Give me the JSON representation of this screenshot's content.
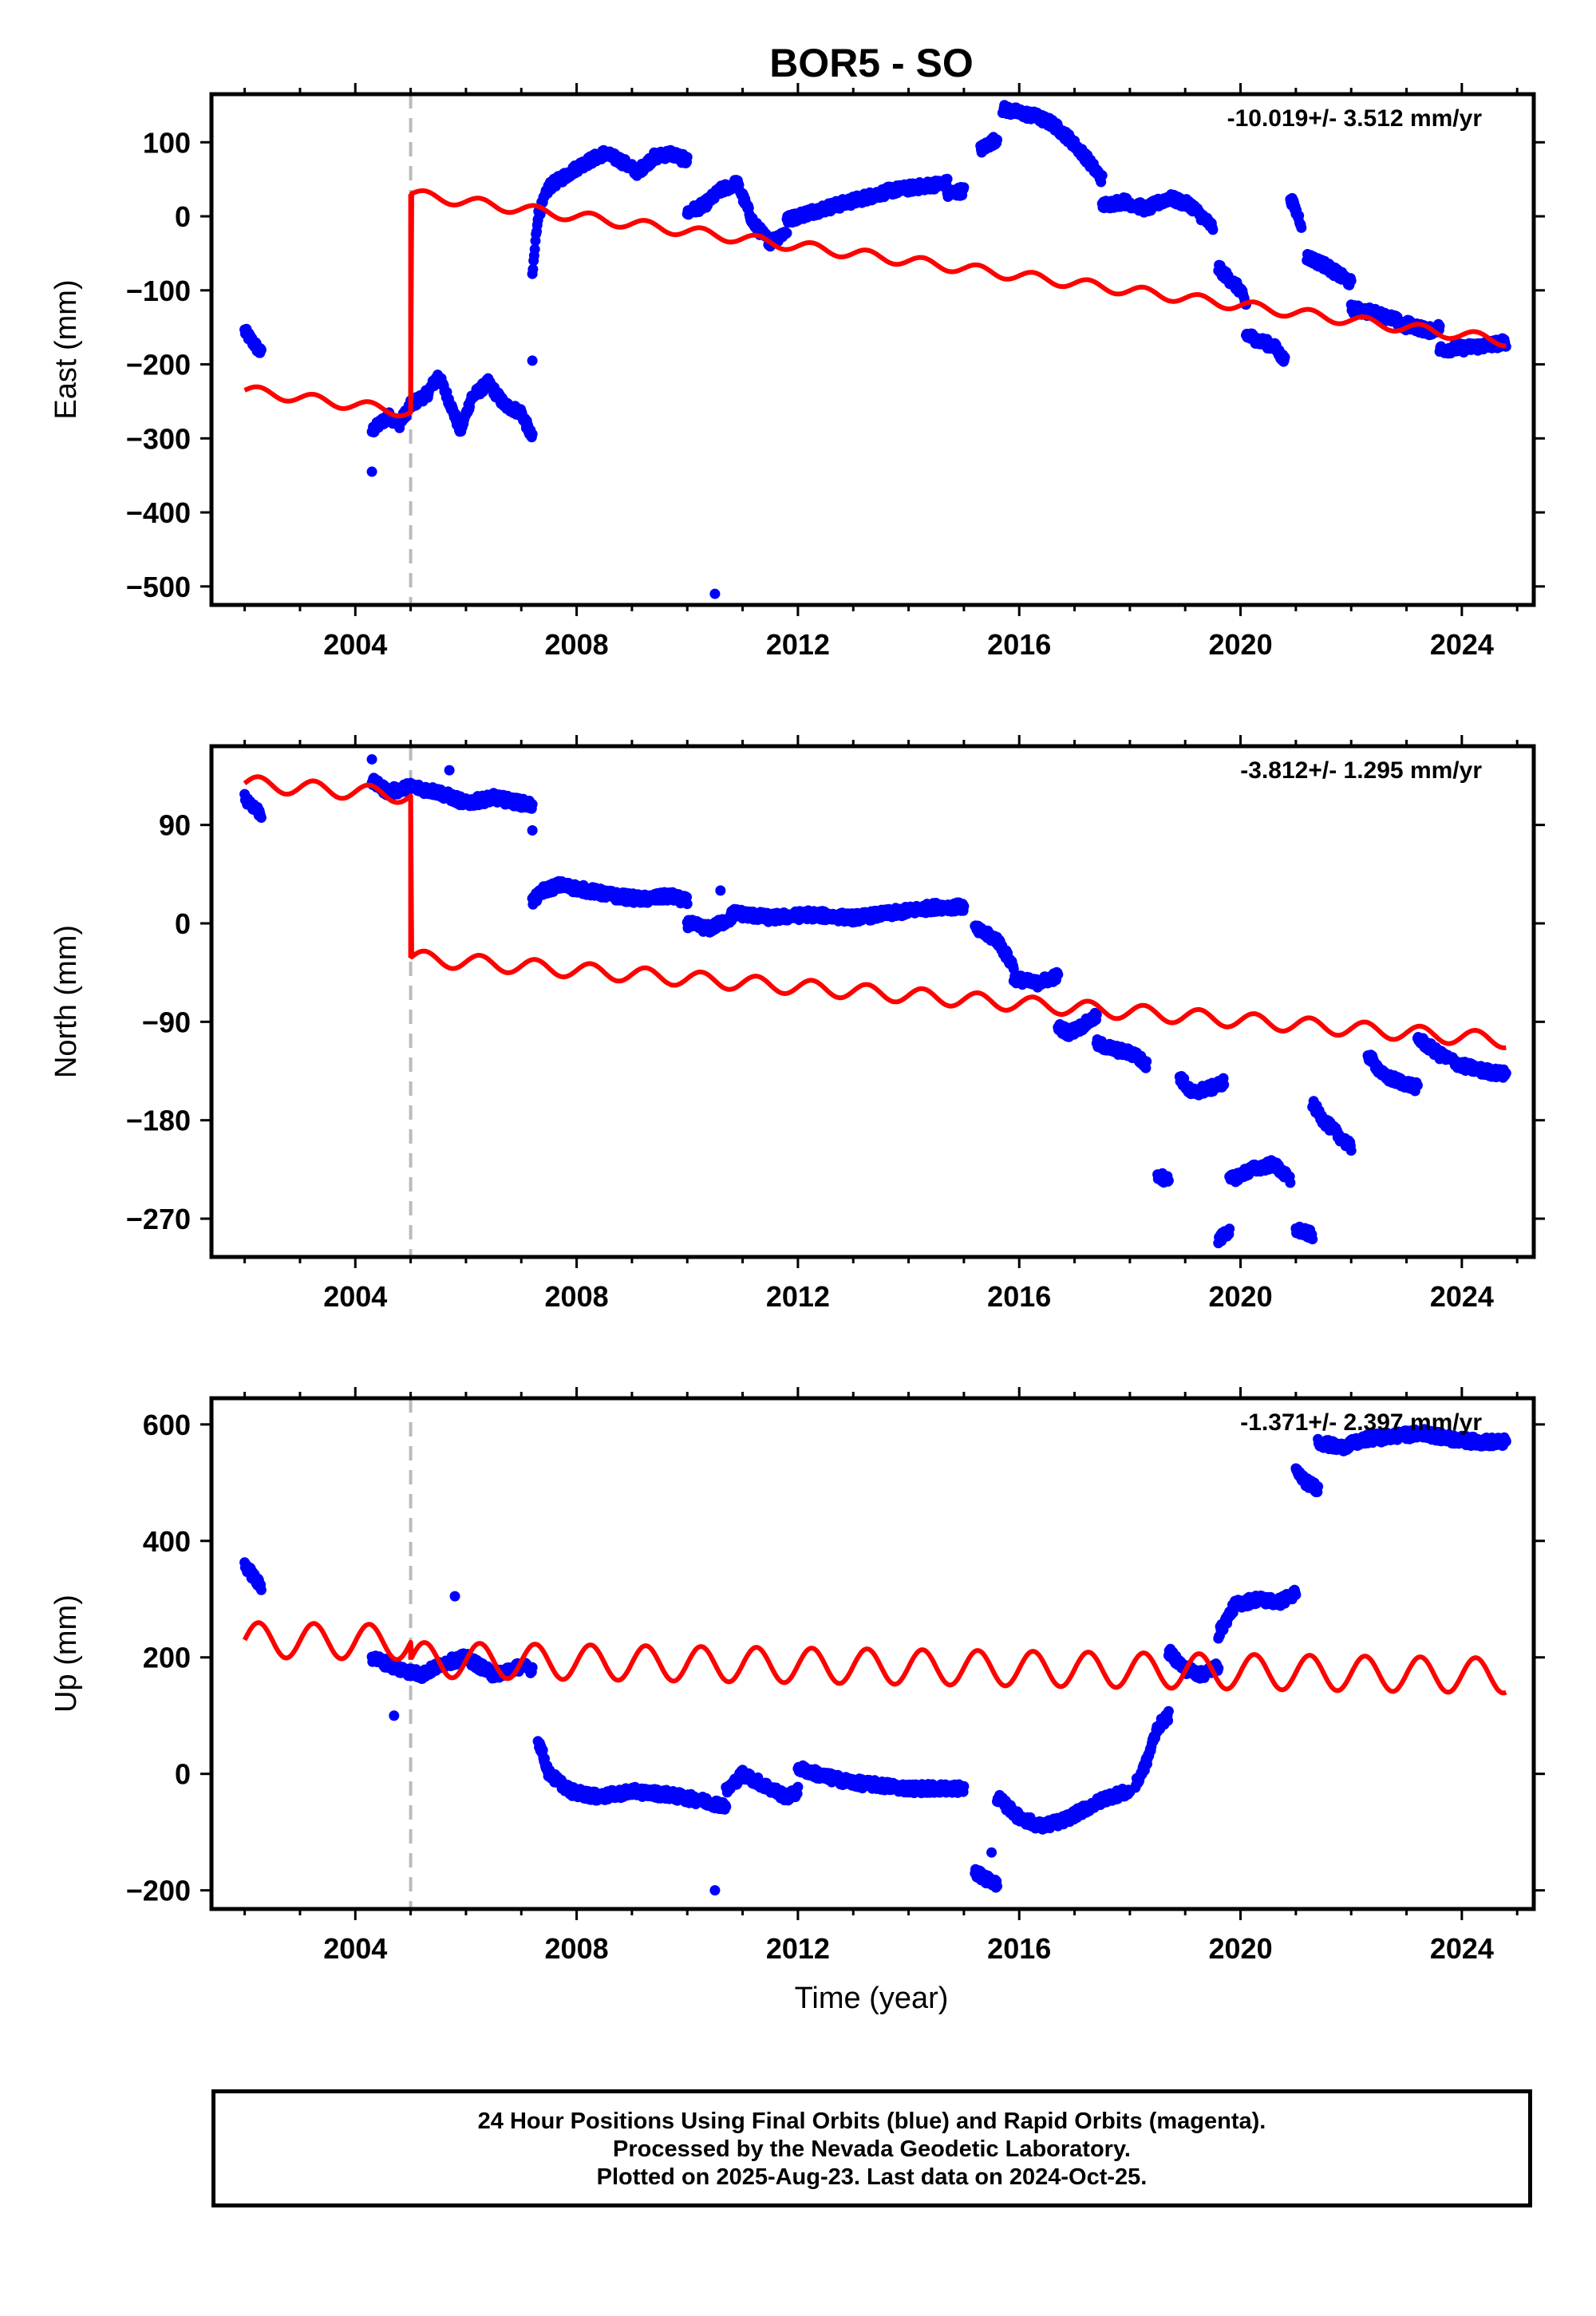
{
  "title": "BOR5 - SO",
  "xlabel": "Time (year)",
  "footer": {
    "line1": "24 Hour Positions Using Final Orbits (blue) and Rapid Orbits (magenta).",
    "line2": "Processed by the Nevada Geodetic Laboratory.",
    "line3": "Plotted on 2025-Aug-23. Last data on 2024-Oct-25."
  },
  "colors": {
    "final_orbits": "#0000ff",
    "model": "#ff0000",
    "event_line": "#bbbbbb"
  },
  "chart_data": [
    {
      "type": "scatter",
      "component": "east",
      "ylabel": "East (mm)",
      "rate": "-10.019+/- 3.512 mm/yr",
      "xlim": [
        2001.4,
        2025.3
      ],
      "ylim": [
        -525,
        165
      ],
      "yticks": [
        100,
        0,
        -100,
        -200,
        -300,
        -400,
        -500
      ],
      "xticks": [
        2004,
        2008,
        2012,
        2016,
        2020,
        2024
      ],
      "event_year": 2005.0,
      "observed_segments": [
        {
          "x": [
            2002.0,
            2002.3
          ],
          "y": [
            -155,
            -185
          ]
        },
        {
          "x": [
            2004.3,
            2004.6,
            2004.8,
            2005.0,
            2005.3,
            2005.5,
            2005.7,
            2005.9,
            2006.1,
            2006.4,
            2006.7,
            2007.0,
            2007.2
          ],
          "y": [
            -290,
            -270,
            -280,
            -255,
            -240,
            -215,
            -250,
            -290,
            -245,
            -225,
            -255,
            -265,
            -300
          ]
        },
        {
          "x": [
            2007.2,
            2007.3,
            2007.5,
            2007.8,
            2008.1,
            2008.5,
            2008.8,
            2009.1,
            2009.4,
            2009.7,
            2010.0
          ],
          "y": [
            -80,
            0,
            40,
            55,
            70,
            85,
            75,
            60,
            80,
            85,
            75
          ]
        },
        {
          "x": [
            2010.0,
            2010.3,
            2010.6,
            2010.9,
            2011.2,
            2011.5,
            2011.8
          ],
          "y": [
            5,
            15,
            35,
            45,
            -10,
            -35,
            -20
          ]
        },
        {
          "x": [
            2011.8,
            2012.2,
            2012.7,
            2013.2,
            2013.7,
            2014.2,
            2014.7
          ],
          "y": [
            -5,
            5,
            15,
            25,
            35,
            40,
            45
          ]
        },
        {
          "x": [
            2014.7,
            2015.0
          ],
          "y": [
            30,
            35
          ]
        },
        {
          "x": [
            2015.3,
            2015.6
          ],
          "y": [
            90,
            105
          ]
        },
        {
          "x": [
            2015.7,
            2016.0,
            2016.3,
            2016.6,
            2016.9,
            2017.2,
            2017.5
          ],
          "y": [
            145,
            140,
            135,
            125,
            105,
            80,
            50
          ]
        },
        {
          "x": [
            2017.5,
            2017.9,
            2018.3,
            2018.7,
            2019.1,
            2019.5
          ],
          "y": [
            15,
            20,
            10,
            25,
            15,
            -15
          ]
        },
        {
          "x": [
            2019.6,
            2019.8,
            2020.0,
            2020.1
          ],
          "y": [
            -70,
            -85,
            -100,
            -120
          ]
        },
        {
          "x": [
            2020.1,
            2020.4,
            2020.6,
            2020.8
          ],
          "y": [
            -160,
            -170,
            -175,
            -195
          ]
        },
        {
          "x": [
            2020.9,
            2021.1
          ],
          "y": [
            25,
            -10
          ]
        },
        {
          "x": [
            2021.2,
            2021.5,
            2021.8,
            2022.0
          ],
          "y": [
            -55,
            -65,
            -80,
            -90
          ]
        },
        {
          "x": [
            2022.0,
            2022.4,
            2022.8,
            2023.0
          ],
          "y": [
            -125,
            -130,
            -140,
            -150
          ]
        },
        {
          "x": [
            2023.0,
            2023.4,
            2023.6
          ],
          "y": [
            -145,
            -155,
            -150
          ]
        },
        {
          "x": [
            2023.6,
            2024.0,
            2024.4,
            2024.8
          ],
          "y": [
            -180,
            -178,
            -175,
            -170
          ]
        }
      ],
      "outliers": {
        "x": [
          2004.3,
          2007.2,
          2010.5
        ],
        "y": [
          -345,
          -195,
          -510
        ]
      },
      "model": {
        "pre_offset": -235,
        "post_offset": 60,
        "rate": -10.019,
        "amp": 7
      }
    },
    {
      "type": "scatter",
      "component": "north",
      "ylabel": "North (mm)",
      "rate": "-3.812+/- 1.295 mm/yr",
      "xlim": [
        2001.4,
        2025.3
      ],
      "ylim": [
        -305,
        162
      ],
      "yticks": [
        90,
        0,
        -90,
        -180,
        -270
      ],
      "xticks": [
        2004,
        2008,
        2012,
        2016,
        2020,
        2024
      ],
      "event_year": 2005.0,
      "observed_segments": [
        {
          "x": [
            2002.0,
            2002.3
          ],
          "y": [
            115,
            100
          ]
        },
        {
          "x": [
            2004.3,
            2004.6,
            2005.0,
            2005.5,
            2006.0,
            2006.5,
            2007.0,
            2007.2
          ],
          "y": [
            130,
            120,
            125,
            120,
            110,
            115,
            110,
            108
          ]
        },
        {
          "x": [
            2007.2,
            2007.4,
            2007.7,
            2008.2,
            2008.7,
            2009.2,
            2009.7,
            2010.0
          ],
          "y": [
            20,
            30,
            35,
            30,
            25,
            22,
            25,
            20
          ]
        },
        {
          "x": [
            2010.0,
            2010.4,
            2010.8
          ],
          "y": [
            0,
            -5,
            5
          ]
        },
        {
          "x": [
            2010.8,
            2011.5,
            2012.2,
            2013.0,
            2013.8,
            2014.5,
            2015.0
          ],
          "y": [
            10,
            5,
            8,
            5,
            10,
            15,
            15
          ]
        },
        {
          "x": [
            2015.2,
            2015.6,
            2015.9
          ],
          "y": [
            -5,
            -15,
            -40
          ]
        },
        {
          "x": [
            2015.9,
            2016.3,
            2016.7
          ],
          "y": [
            -50,
            -55,
            -48
          ]
        },
        {
          "x": [
            2016.7,
            2016.9,
            2017.1,
            2017.4
          ],
          "y": [
            -95,
            -100,
            -95,
            -85
          ]
        },
        {
          "x": [
            2017.4,
            2017.7,
            2018.1,
            2018.3
          ],
          "y": [
            -110,
            -115,
            -120,
            -130
          ]
        },
        {
          "x": [
            2018.5,
            2018.7
          ],
          "y": [
            -230,
            -235
          ]
        },
        {
          "x": [
            2018.9,
            2019.1,
            2019.5,
            2019.7
          ],
          "y": [
            -140,
            -155,
            -150,
            -145
          ]
        },
        {
          "x": [
            2019.6,
            2019.8
          ],
          "y": [
            -290,
            -280
          ]
        },
        {
          "x": [
            2019.8,
            2020.2,
            2020.6,
            2020.9
          ],
          "y": [
            -235,
            -225,
            -220,
            -235
          ]
        },
        {
          "x": [
            2021.0,
            2021.3
          ],
          "y": [
            -280,
            -285
          ]
        },
        {
          "x": [
            2021.3,
            2021.5,
            2021.8,
            2022.0
          ],
          "y": [
            -165,
            -180,
            -195,
            -205
          ]
        },
        {
          "x": [
            2022.3,
            2022.6,
            2022.9,
            2023.2
          ],
          "y": [
            -120,
            -140,
            -145,
            -150
          ]
        },
        {
          "x": [
            2023.2,
            2023.6,
            2024.0,
            2024.4,
            2024.8
          ],
          "y": [
            -105,
            -120,
            -130,
            -135,
            -138
          ]
        }
      ],
      "outliers": {
        "x": [
          2004.3,
          2005.7,
          2007.2,
          2010.6
        ],
        "y": [
          150,
          140,
          85,
          30
        ]
      },
      "model": {
        "pre_offset": 128,
        "post_offset": -20,
        "rate": -3.812,
        "amp": 7
      }
    },
    {
      "type": "scatter",
      "component": "up",
      "ylabel": "Up (mm)",
      "rate": "-1.371+/- 2.397 mm/yr",
      "xlim": [
        2001.4,
        2025.3
      ],
      "ylim": [
        -232,
        645
      ],
      "yticks": [
        600,
        400,
        200,
        0,
        -200
      ],
      "xticks": [
        2004,
        2008,
        2012,
        2016,
        2020,
        2024
      ],
      "event_year": 2005.0,
      "observed_segments": [
        {
          "x": [
            2002.0,
            2002.3
          ],
          "y": [
            360,
            320
          ]
        },
        {
          "x": [
            2004.3,
            2004.8,
            2005.2,
            2005.6,
            2006.0,
            2006.5,
            2007.0,
            2007.2
          ],
          "y": [
            200,
            180,
            170,
            190,
            200,
            170,
            185,
            180
          ]
        },
        {
          "x": [
            2007.3,
            2007.5,
            2007.9,
            2008.4,
            2009.0,
            2009.6,
            2010.2,
            2010.7
          ],
          "y": [
            60,
            0,
            -30,
            -40,
            -30,
            -35,
            -45,
            -55
          ]
        },
        {
          "x": [
            2010.7,
            2011.0,
            2011.4,
            2011.8,
            2012.0
          ],
          "y": [
            -30,
            0,
            -20,
            -40,
            -30
          ]
        },
        {
          "x": [
            2012.0,
            2012.5,
            2013.0,
            2013.5,
            2014.0,
            2014.5,
            2015.0
          ],
          "y": [
            10,
            -5,
            -15,
            -20,
            -25,
            -25,
            -25
          ]
        },
        {
          "x": [
            2015.2,
            2015.6
          ],
          "y": [
            -170,
            -190
          ]
        },
        {
          "x": [
            2015.6,
            2016.0,
            2016.4,
            2016.8,
            2017.2,
            2017.6,
            2018.0
          ],
          "y": [
            -40,
            -75,
            -90,
            -80,
            -60,
            -40,
            -30
          ]
        },
        {
          "x": [
            2018.1,
            2018.3,
            2018.5,
            2018.7
          ],
          "y": [
            -20,
            20,
            80,
            100
          ]
        },
        {
          "x": [
            2018.7,
            2019.0,
            2019.3,
            2019.6
          ],
          "y": [
            210,
            180,
            170,
            185
          ]
        },
        {
          "x": [
            2019.6,
            2019.9,
            2020.3,
            2020.7,
            2021.0
          ],
          "y": [
            240,
            290,
            300,
            295,
            310
          ]
        },
        {
          "x": [
            2021.0,
            2021.2,
            2021.4
          ],
          "y": [
            520,
            500,
            490
          ]
        },
        {
          "x": [
            2021.4,
            2021.8,
            2022.3,
            2022.8,
            2023.3,
            2023.8,
            2024.3,
            2024.8
          ],
          "y": [
            570,
            560,
            575,
            580,
            585,
            575,
            570,
            570
          ]
        }
      ],
      "outliers": {
        "x": [
          2005.8,
          2010.5,
          2004.7,
          2015.5
        ],
        "y": [
          305,
          -200,
          100,
          -135
        ]
      },
      "model": {
        "pre_offset": 230,
        "post_offset": 200,
        "rate": -1.371,
        "amp": 30
      }
    }
  ]
}
